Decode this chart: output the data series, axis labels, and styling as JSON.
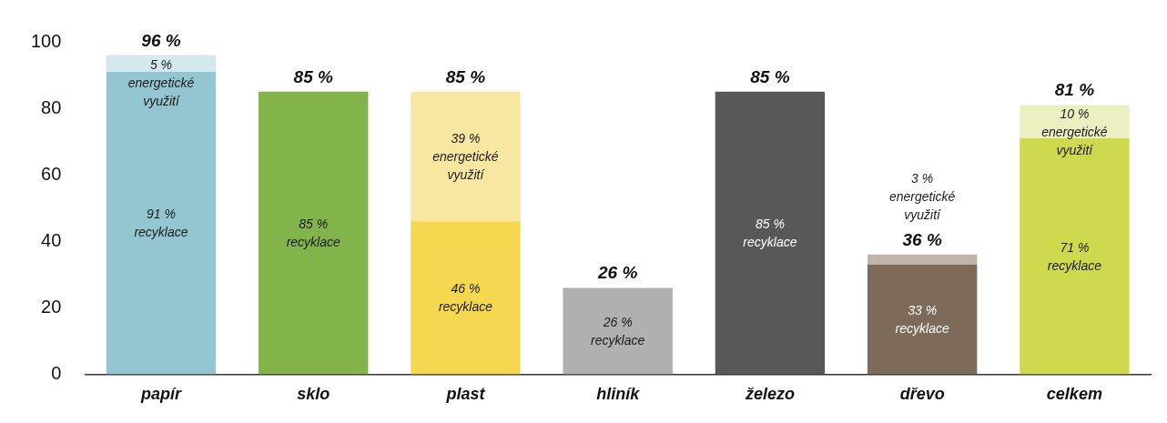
{
  "chart_data": {
    "type": "bar",
    "stacked": true,
    "categories": [
      "papír",
      "sklo",
      "plast",
      "hliník",
      "železo",
      "dřevo",
      "celkem"
    ],
    "series": [
      {
        "colors": [
          "#93c6d0",
          "#82b44b",
          "#f6d850",
          "#b0b0b0",
          "#585856",
          "#7d6a58",
          "#cfd94d"
        ],
        "values": [
          91,
          85,
          46,
          26,
          85,
          33,
          71
        ],
        "value_labels": [
          "91 %\nrecyklace",
          "85 %\nrecyklace",
          "46 %\nrecyklace",
          "26 %\nrecyklace",
          "85 %\nrecyklace",
          "33 %\nrecyklace",
          "71 %\nrecyklace"
        ]
      },
      {
        "colors": [
          "#d5e8ee",
          "#d5e8ee",
          "#f8e7a0",
          "#d9d9d9",
          "#a0a0a0",
          "#c1b4a8",
          "#ecf0c0"
        ],
        "values": [
          5,
          null,
          39,
          null,
          null,
          3,
          10
        ],
        "value_labels": [
          "5 %\nenergetické\nvyužití",
          null,
          "39 %\nenergetické\nvyužití",
          null,
          null,
          "3 %\nenergetické\nvyužití",
          "10 %\nenergetické\nvyužití"
        ]
      }
    ],
    "totals": [
      "96 %",
      "85 %",
      "85 %",
      "26 %",
      "85 %",
      "36 %",
      "81 %"
    ],
    "ylim": [
      0,
      100
    ],
    "yticks": [
      0,
      20,
      40,
      60,
      80,
      100
    ],
    "grid": false,
    "legend": false
  }
}
